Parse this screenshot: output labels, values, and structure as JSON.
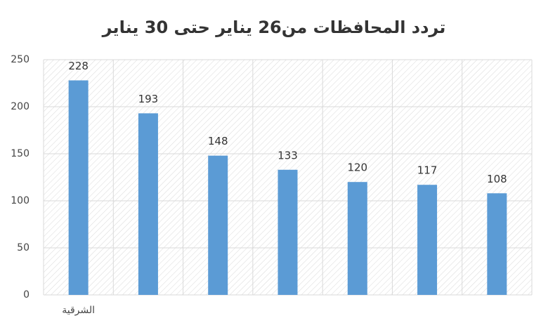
{
  "chart_data": {
    "type": "bar",
    "title": "تردد المحافظات من26 يناير حتى 30 يناير",
    "categories": [
      "الشرقية",
      null,
      null,
      null,
      null,
      null,
      null
    ],
    "values": [
      228,
      193,
      148,
      133,
      120,
      117,
      108
    ],
    "color": "#5b9bd5",
    "ylim": [
      0,
      250
    ],
    "yticks": [
      0,
      50,
      100,
      150,
      200,
      250
    ],
    "grid": true
  }
}
